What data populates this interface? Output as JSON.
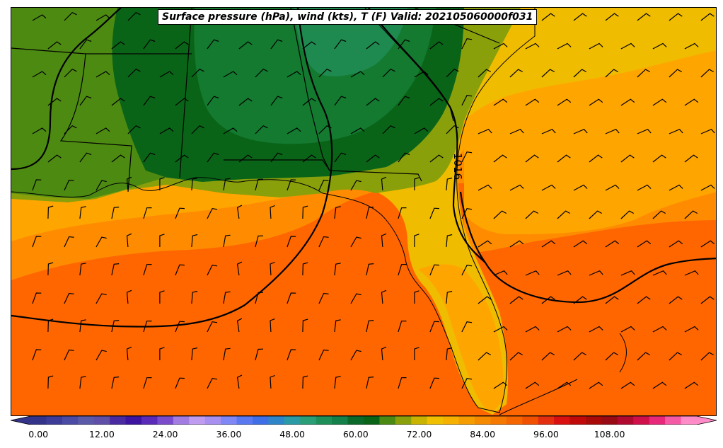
{
  "title": "Surface pressure (hPa), wind (kts), T (F) Valid: 202105060000f031",
  "isobar_label": "1016",
  "colorbar": {
    "ticks": [
      "0.00",
      "12.00",
      "24.00",
      "36.00",
      "48.00",
      "60.00",
      "72.00",
      "84.00",
      "96.00",
      "108.00"
    ],
    "colors": [
      "#33338a",
      "#3d3d99",
      "#4b4ba6",
      "#5a5aa8",
      "#5f4fa6",
      "#4a2aa0",
      "#3c14a0",
      "#5a2ab8",
      "#7a4ccc",
      "#a27ce0",
      "#c09cf0",
      "#a890f0",
      "#7f86f5",
      "#5a78f0",
      "#3f6fe6",
      "#2e86c8",
      "#2a9aa6",
      "#2a9e76",
      "#1f8f5a",
      "#14804a",
      "#0b6a2a",
      "#0a6418",
      "#4a8a12",
      "#8aa00a",
      "#c8b400",
      "#f0c000",
      "#f6b000",
      "#f59c00",
      "#f58a00",
      "#f57800",
      "#f56600",
      "#f05000",
      "#e42e10",
      "#d81010",
      "#c00a0a",
      "#a80a0a",
      "#980a14",
      "#b00a30",
      "#d0104a",
      "#e8287a",
      "#f45aa6",
      "#ff8cc8"
    ]
  },
  "colors": {
    "ocean_warm": "#ff6600",
    "ocean_mid": "#ff8c00",
    "ocean_light": "#ffa500",
    "yellow": "#f0bc00",
    "olive": "#8aa00a",
    "green_light": "#4d8a12",
    "green_dark": "#0a6418",
    "green_mid": "#137a30",
    "green_teal": "#1f8a50",
    "isobar": "#000000"
  }
}
